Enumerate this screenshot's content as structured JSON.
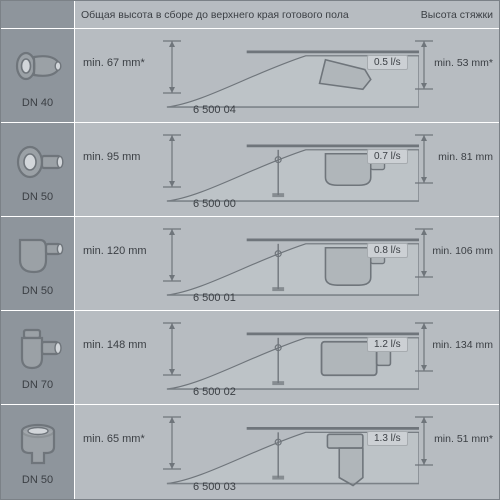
{
  "header": {
    "title_main": "Общая высота в сборе до верхнего края готового пола",
    "title_right": "Высота стяжки"
  },
  "colors": {
    "panel_dark": "#8e959c",
    "panel_light": "#b7bcc1",
    "divider": "#ffffff",
    "stroke": "#6f757b",
    "text": "#3b3f44",
    "badge_bg": "#ccd0d4",
    "badge_border": "#a6abaf",
    "floor_line": "#7b8187"
  },
  "rows": [
    {
      "dn": "DN 40",
      "icon": "trap-side-40",
      "min_left": "min. 67 mm*",
      "model": "6 500 04",
      "flow": "0.5 l/s",
      "min_right": "min. 53 mm*",
      "trap_type": "shallow-angled"
    },
    {
      "dn": "DN 50",
      "icon": "trap-side-50a",
      "min_left": "min. 95 mm",
      "model": "6 500 00",
      "flow": "0.7 l/s",
      "min_right": "min. 81 mm",
      "trap_type": "standard-side"
    },
    {
      "dn": "DN 50",
      "icon": "trap-side-50b",
      "min_left": "min. 120 mm",
      "model": "6 500 01",
      "flow": "0.8 l/s",
      "min_right": "min. 106 mm",
      "trap_type": "deep-side"
    },
    {
      "dn": "DN 70",
      "icon": "trap-side-70",
      "min_left": "min. 148 mm",
      "model": "6 500 02",
      "flow": "1.2 l/s",
      "min_right": "min. 134 mm",
      "trap_type": "large-side"
    },
    {
      "dn": "DN 50",
      "icon": "trap-vertical-50",
      "min_left": "min. 65 mm*",
      "model": "6 500 03",
      "flow": "1.3 l/s",
      "min_right": "min. 51 mm*",
      "trap_type": "vertical"
    }
  ],
  "typography": {
    "header_fontsize_pt": 8,
    "body_fontsize_pt": 8.5,
    "font_family": "Arial"
  },
  "diagram_style": {
    "floor_stroke_width": 1.4,
    "trap_stroke_width": 1.6,
    "arrow_stroke_width": 1.2,
    "trap_fill": "#a6abaf",
    "trap_fill_opacity": 0.55
  }
}
